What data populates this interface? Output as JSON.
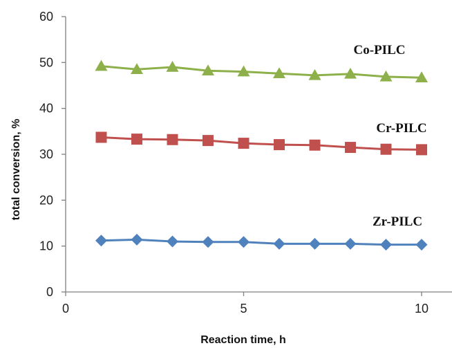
{
  "chart_data": {
    "type": "line",
    "title": "",
    "xlabel": "Reaction time, h",
    "ylabel": "total conversion, %",
    "xlim": [
      0,
      11
    ],
    "ylim": [
      0,
      60
    ],
    "xticks": [
      0,
      5,
      10
    ],
    "yticks": [
      0,
      10,
      20,
      30,
      40,
      50,
      60
    ],
    "grid": false,
    "legend": "none",
    "x": [
      1,
      2,
      3,
      4,
      5,
      6,
      7,
      8,
      9,
      10
    ],
    "series": [
      {
        "name": "Co-PILC",
        "marker": "triangle",
        "color": "#8DB04A",
        "values": [
          49.2,
          48.5,
          49.0,
          48.2,
          48.0,
          47.6,
          47.2,
          47.5,
          46.9,
          46.7
        ]
      },
      {
        "name": "Cr-PILC",
        "marker": "square",
        "color": "#C0504D",
        "values": [
          33.7,
          33.3,
          33.2,
          33.0,
          32.4,
          32.1,
          32.0,
          31.5,
          31.1,
          31.0
        ]
      },
      {
        "name": "Zr-PILC",
        "marker": "diamond",
        "color": "#4F81BD",
        "values": [
          11.2,
          11.4,
          11.0,
          10.9,
          10.9,
          10.5,
          10.5,
          10.5,
          10.3,
          10.3
        ]
      }
    ]
  }
}
